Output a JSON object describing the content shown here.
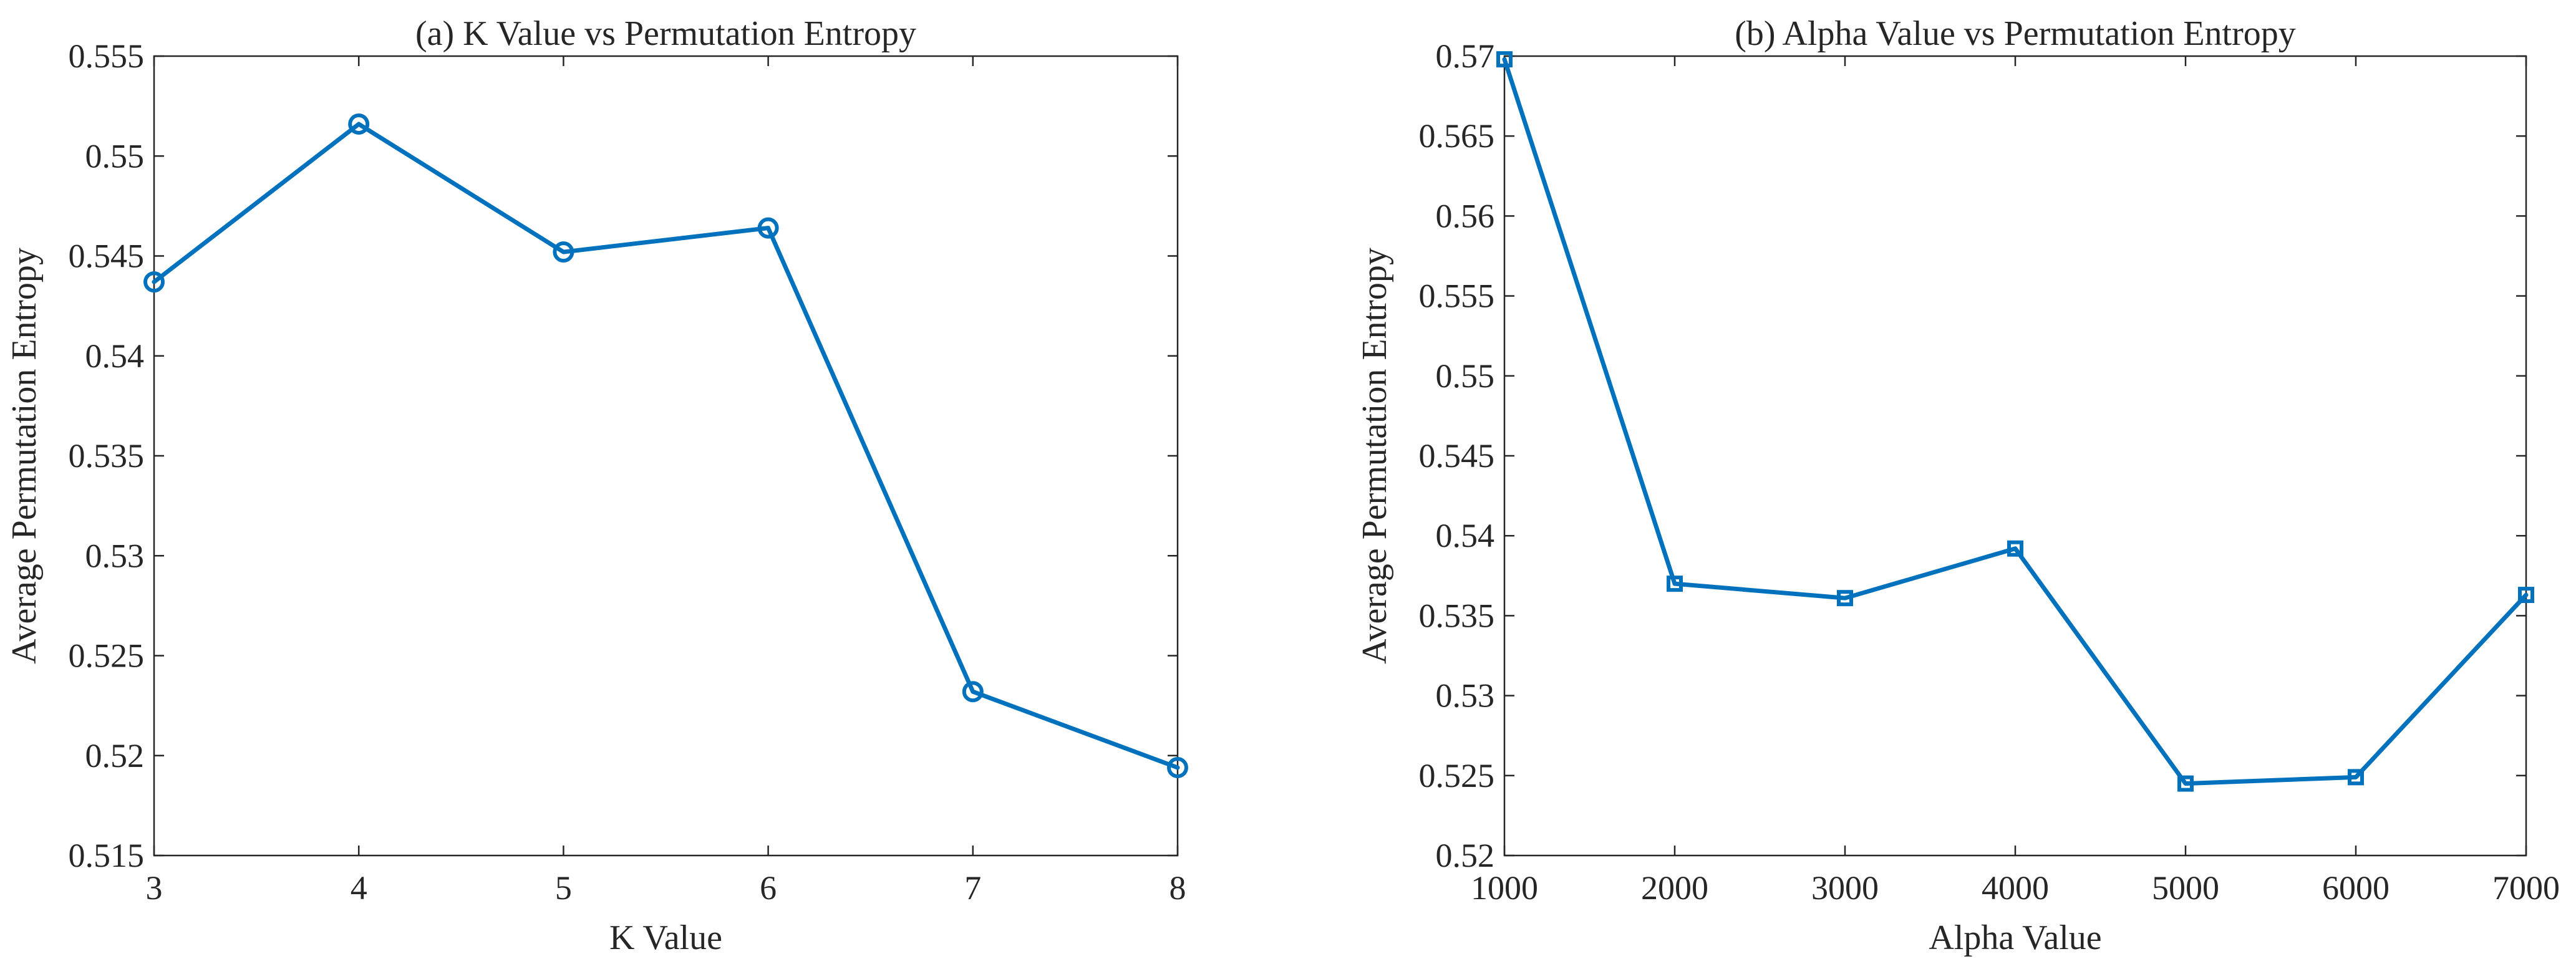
{
  "colors": {
    "series": "#0072BD",
    "axis": "#262626"
  },
  "chart_data": [
    {
      "type": "line",
      "title": "(a) K Value vs Permutation Entropy",
      "xlabel": "K Value",
      "ylabel": "Average Permutation Entropy",
      "xlim": [
        3,
        8
      ],
      "ylim": [
        0.515,
        0.555
      ],
      "xticks": [
        3,
        4,
        5,
        6,
        7,
        8
      ],
      "xtick_labels": [
        "3",
        "4",
        "5",
        "6",
        "7",
        "8"
      ],
      "yticks": [
        0.515,
        0.52,
        0.525,
        0.53,
        0.535,
        0.54,
        0.545,
        0.55,
        0.555
      ],
      "ytick_labels": [
        "0.515",
        "0.52",
        "0.525",
        "0.53",
        "0.535",
        "0.54",
        "0.545",
        "0.55",
        "0.555"
      ],
      "marker": "circle",
      "x": [
        3,
        4,
        5,
        6,
        7,
        8
      ],
      "y": [
        0.5437,
        0.5516,
        0.5452,
        0.5464,
        0.5232,
        0.5194
      ],
      "grid": false
    },
    {
      "type": "line",
      "title": "(b) Alpha Value vs Permutation Entropy",
      "xlabel": "Alpha Value",
      "ylabel": "Average Permutation Entropy",
      "xlim": [
        1000,
        7000
      ],
      "ylim": [
        0.52,
        0.57
      ],
      "xticks": [
        1000,
        2000,
        3000,
        4000,
        5000,
        6000,
        7000
      ],
      "xtick_labels": [
        "1000",
        "2000",
        "3000",
        "4000",
        "5000",
        "6000",
        "7000"
      ],
      "yticks": [
        0.52,
        0.525,
        0.53,
        0.535,
        0.54,
        0.545,
        0.55,
        0.555,
        0.56,
        0.565,
        0.57
      ],
      "ytick_labels": [
        "0.52",
        "0.525",
        "0.53",
        "0.535",
        "0.54",
        "0.545",
        "0.55",
        "0.555",
        "0.56",
        "0.565",
        "0.57"
      ],
      "marker": "square",
      "x": [
        1000,
        2000,
        3000,
        4000,
        5000,
        6000,
        7000
      ],
      "y": [
        0.5698,
        0.537,
        0.5361,
        0.5392,
        0.5245,
        0.5249,
        0.5363
      ],
      "grid": false
    }
  ]
}
